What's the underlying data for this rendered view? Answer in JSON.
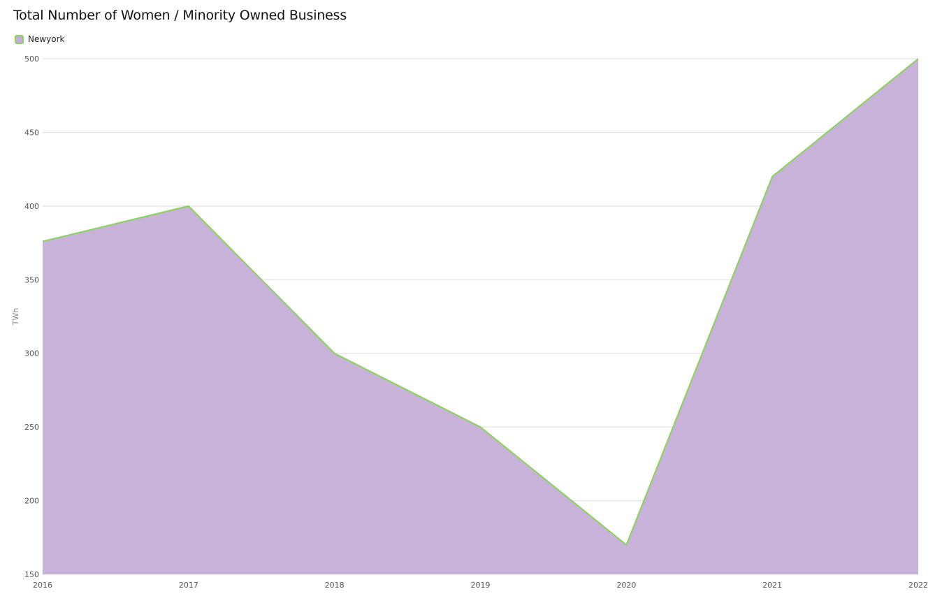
{
  "chart_data": {
    "type": "area",
    "title": "Total Number of Women / Minority Owned Business",
    "xlabel": "",
    "ylabel": "TWh",
    "x": [
      "2016",
      "2017",
      "2018",
      "2019",
      "2020",
      "2021",
      "2022"
    ],
    "series": [
      {
        "name": "Newyork",
        "values": [
          376,
          400,
          300,
          250,
          170,
          420,
          500
        ],
        "fill_color": "#c5aed8",
        "line_color": "#8ad35a"
      }
    ],
    "ylim": [
      150,
      500
    ],
    "yticks": [
      150,
      200,
      250,
      300,
      350,
      400,
      450,
      500
    ],
    "grid": true,
    "legend_position": "top-left"
  }
}
